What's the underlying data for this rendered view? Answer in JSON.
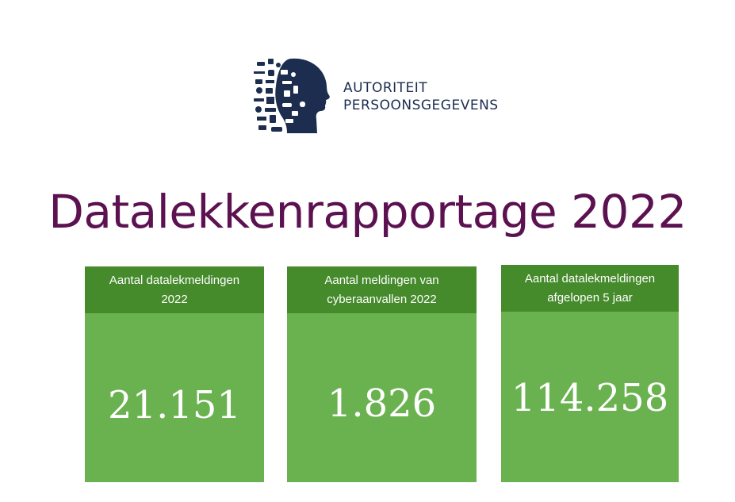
{
  "header": {
    "logo": {
      "icon": "profile-head-collage-icon",
      "line1": "AUTORITEIT",
      "line2": "PERSOONSGEGEVENS",
      "color": "#1c2d4f"
    }
  },
  "main": {
    "title": "Datalekkenrapportage 2022",
    "title_color": "#5c1251",
    "cards": [
      {
        "label_line1": "Aantal datalekmeldingen",
        "label_line2": "2022",
        "value": "21.151"
      },
      {
        "label_line1": "Aantal meldingen van",
        "label_line2": "cyberaanvallen 2022",
        "value": "1.826"
      },
      {
        "label_line1": "Aantal datalekmeldingen",
        "label_line2": "afgelopen 5 jaar",
        "value": "114.258"
      }
    ],
    "colors": {
      "card_header": "#458a2b",
      "card_body": "#6ab24f"
    }
  }
}
